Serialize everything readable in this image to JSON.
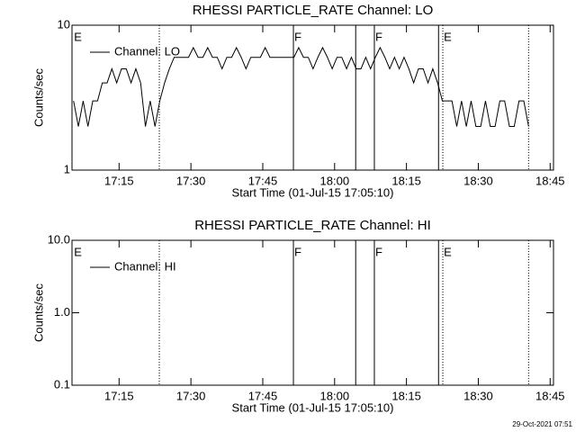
{
  "chart_data": [
    {
      "type": "line",
      "title": "RHESSI PARTICLE_RATE Channel: LO",
      "xlabel": "Start Time (01-Jul-15 17:05:10)",
      "ylabel": "Counts/sec",
      "xlim": [
        5.17,
        105.7
      ],
      "xticks": [
        {
          "value": 15,
          "label": "17:15"
        },
        {
          "value": 30,
          "label": "17:30"
        },
        {
          "value": 45,
          "label": "17:45"
        },
        {
          "value": 60,
          "label": "18:00"
        },
        {
          "value": 75,
          "label": "18:15"
        },
        {
          "value": 90,
          "label": "18:30"
        },
        {
          "value": 105,
          "label": "18:45"
        }
      ],
      "ylim": [
        1,
        10
      ],
      "yticks": [
        1,
        10
      ],
      "yscale": "log",
      "legend": "upper left",
      "markers": [
        {
          "x": 23.4,
          "style": "dotted"
        },
        {
          "x": 51.4,
          "style": "solid"
        },
        {
          "x": 64.4,
          "style": "solid"
        },
        {
          "x": 68.3,
          "style": "solid"
        },
        {
          "x": 81.7,
          "style": "solid"
        },
        {
          "x": 82.6,
          "style": "dotted"
        },
        {
          "x": 100.5,
          "style": "dotted"
        }
      ],
      "marker_labels": [
        {
          "x": 5.4,
          "label": "E"
        },
        {
          "x": 51.4,
          "label": "F"
        },
        {
          "x": 68.3,
          "label": "F"
        },
        {
          "x": 82.6,
          "label": "E"
        }
      ],
      "x": [
        5.5,
        6.5,
        7.5,
        8.5,
        9.5,
        10.5,
        11.5,
        12.5,
        13.5,
        14.5,
        15.5,
        16.5,
        17.5,
        18.5,
        19.5,
        20.5,
        21.5,
        22.5,
        23.5,
        24.5,
        25.5,
        26.5,
        27.5,
        28.5,
        29.5,
        30.5,
        31.5,
        32.5,
        33.5,
        34.5,
        35.5,
        36.5,
        37.5,
        38.5,
        39.5,
        40.5,
        41.5,
        42.5,
        43.5,
        44.5,
        45.5,
        46.5,
        47.5,
        48.5,
        49.5,
        50.5,
        51.5,
        52.5,
        53.5,
        54.5,
        55.5,
        56.5,
        57.5,
        58.5,
        59.5,
        60.5,
        61.5,
        62.5,
        63.5,
        64.5,
        65.5,
        66.5,
        67.5,
        68.5,
        69.5,
        70.5,
        71.5,
        72.5,
        73.5,
        74.5,
        75.5,
        76.5,
        77.5,
        78.5,
        79.5,
        80.5,
        81.5,
        82.5,
        83.5,
        84.5,
        85.5,
        86.5,
        87.5,
        88.5,
        89.5,
        90.5,
        91.5,
        92.5,
        93.5,
        94.5,
        95.5,
        96.5,
        97.5,
        98.5,
        99.5,
        100.5
      ],
      "series": [
        {
          "name": "Channel: LO",
          "color": "#000000",
          "values": [
            3,
            2,
            3,
            2,
            3,
            3,
            4,
            4,
            5,
            4,
            5,
            5,
            4,
            5,
            4,
            2,
            3,
            2,
            3,
            4,
            5,
            6,
            6,
            6,
            6,
            7,
            6,
            6,
            7,
            6,
            6,
            5,
            6,
            6,
            7,
            6,
            5,
            6,
            6,
            6,
            7,
            6,
            6,
            6,
            6,
            6,
            6,
            7,
            6,
            6,
            5,
            6,
            7,
            6,
            5,
            6,
            6,
            5,
            6,
            5,
            5,
            6,
            5,
            6,
            7,
            6,
            5,
            6,
            5,
            6,
            5,
            4,
            5,
            5,
            4,
            5,
            4,
            3,
            3,
            3,
            2,
            3,
            2,
            3,
            2,
            2,
            3,
            2,
            2,
            3,
            3,
            2,
            2,
            3,
            3,
            2
          ]
        }
      ]
    },
    {
      "type": "line",
      "title": "RHESSI PARTICLE_RATE Channel: HI",
      "xlabel": "Start Time (01-Jul-15 17:05:10)",
      "ylabel": "Counts/sec",
      "xlim": [
        5.17,
        105.7
      ],
      "xticks": [
        {
          "value": 15,
          "label": "17:15"
        },
        {
          "value": 30,
          "label": "17:30"
        },
        {
          "value": 45,
          "label": "17:45"
        },
        {
          "value": 60,
          "label": "18:00"
        },
        {
          "value": 75,
          "label": "18:15"
        },
        {
          "value": 90,
          "label": "18:30"
        },
        {
          "value": 105,
          "label": "18:45"
        }
      ],
      "ylim": [
        0.1,
        10
      ],
      "yticks": [
        0.1,
        {
          "value": 1,
          "label": "1.0"
        },
        {
          "value": 10,
          "label": "10.0"
        }
      ],
      "yscale": "log",
      "legend": "upper left",
      "markers": [
        {
          "x": 23.4,
          "style": "dotted"
        },
        {
          "x": 51.4,
          "style": "solid"
        },
        {
          "x": 64.4,
          "style": "solid"
        },
        {
          "x": 68.3,
          "style": "solid"
        },
        {
          "x": 81.7,
          "style": "solid"
        },
        {
          "x": 82.6,
          "style": "dotted"
        },
        {
          "x": 100.5,
          "style": "dotted"
        }
      ],
      "marker_labels": [
        {
          "x": 5.4,
          "label": "E"
        },
        {
          "x": 51.4,
          "label": "F"
        },
        {
          "x": 68.3,
          "label": "F"
        },
        {
          "x": 82.6,
          "label": "E"
        }
      ],
      "x": [],
      "series": [
        {
          "name": "Channel: HI",
          "color": "#000000",
          "values": []
        }
      ]
    }
  ],
  "timestamp": "29-Oct-2021 07:51"
}
